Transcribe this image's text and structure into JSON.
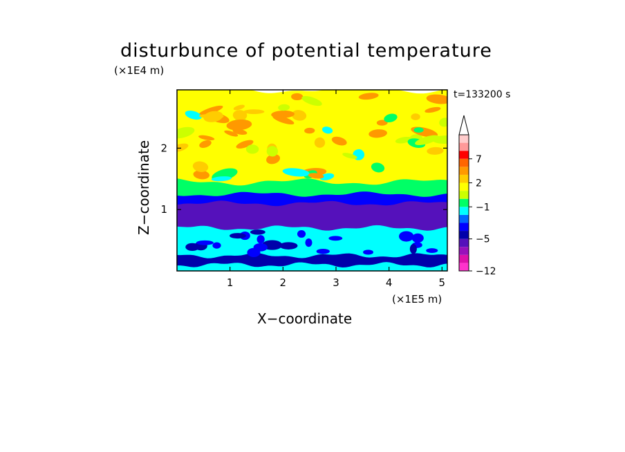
{
  "chart_data": {
    "type": "heatmap",
    "title": "disturbunce of potential temperature",
    "xlabel": "X−coordinate",
    "ylabel": "Z−coordinate",
    "x_unit": "(×1E5 m)",
    "y_unit": "(×1E4 m)",
    "time_label": "t=133200 s",
    "xlim": [
      0,
      5.1
    ],
    "ylim": [
      0,
      2.95
    ],
    "x_ticks": [
      1,
      2,
      3,
      4,
      5
    ],
    "y_ticks": [
      1,
      2
    ],
    "colorbar": {
      "levels": [
        -12,
        -11,
        -9,
        -7,
        -5,
        -4,
        -3,
        -2,
        -1,
        0,
        1,
        2,
        3,
        5,
        7,
        9,
        11
      ],
      "tick_labels": [
        "7",
        "2",
        "−1",
        "−5",
        "−12"
      ],
      "tick_values": [
        7,
        2,
        -1,
        -5,
        -12
      ],
      "colors": [
        "#ff33cc",
        "#dd11aa",
        "#9911bb",
        "#5511bb",
        "#0000aa",
        "#0000ff",
        "#0066ff",
        "#00ffff",
        "#00ff66",
        "#ccff00",
        "#ffff00",
        "#ffcc00",
        "#ff9900",
        "#ff6600",
        "#ff0000",
        "#ff9999",
        "#ffcccc"
      ],
      "extend_top": true
    },
    "layers": [
      {
        "z_range": [
          0.0,
          0.1
        ],
        "value": -1.5,
        "description_color": "#00ff66"
      },
      {
        "z_range": [
          0.1,
          0.25
        ],
        "value": -5,
        "description_color": "#0000aa"
      },
      {
        "z_range": [
          0.25,
          0.7
        ],
        "value": -2,
        "description_color": "#00ffff"
      },
      {
        "z_range": [
          0.7,
          1.1
        ],
        "value": -6,
        "description_color": "#0000aa"
      },
      {
        "z_range": [
          1.1,
          1.25
        ],
        "value": -3.5,
        "description_color": "#0066ff"
      },
      {
        "z_range": [
          1.25,
          1.45
        ],
        "value": -0.5,
        "description_color": "#00ff66"
      },
      {
        "z_range": [
          1.45,
          2.95
        ],
        "value": 1.5,
        "description_color": "#ffff00"
      }
    ]
  }
}
